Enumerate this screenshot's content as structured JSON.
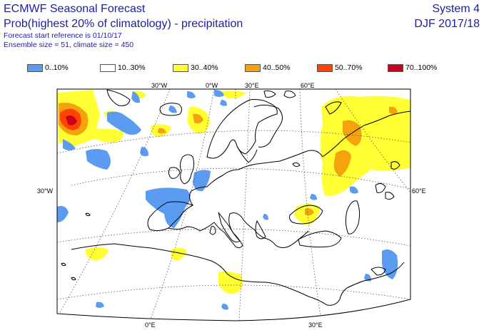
{
  "header": {
    "title": "ECMWF Seasonal Forecast",
    "subtitle": "Prob(highest 20% of climatology) - precipitation",
    "start_reference": "Forecast start reference is 01/10/17",
    "ensemble": "Ensemble size = 51, climate size = 450",
    "system": "System 4",
    "season": "DJF 2017/18"
  },
  "legend": [
    {
      "label": "0..10%",
      "color": "#5b9cf0"
    },
    {
      "label": "10..30%",
      "color": "#ffffff"
    },
    {
      "label": "30..40%",
      "color": "#ffff33"
    },
    {
      "label": "40..50%",
      "color": "#f4a30f"
    },
    {
      "label": "50..70%",
      "color": "#ff4400"
    },
    {
      "label": "70..100%",
      "color": "#c8001e"
    }
  ],
  "map": {
    "top_lon_labels": [
      "30°W",
      "0°W",
      "30°E",
      "60°E"
    ],
    "bottom_lon_labels": [
      "0°E",
      "30°E"
    ],
    "left_lat_label": "30°W",
    "right_lat_label": "60°E"
  }
}
